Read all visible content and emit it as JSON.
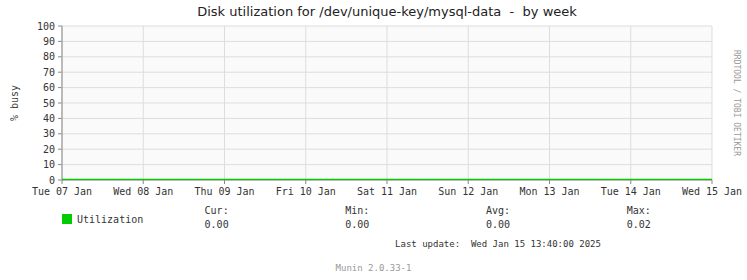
{
  "chart_data": {
    "type": "line",
    "title": "Disk utilization for /dev/unique-key/mysql-data  -  by week",
    "y_label": "% busy",
    "x": [
      0,
      8
    ],
    "xlim": [
      0,
      8
    ],
    "xticks": [
      {
        "value": 0,
        "label": "Tue 07 Jan"
      },
      {
        "value": 1,
        "label": "Wed 08 Jan"
      },
      {
        "value": 2,
        "label": "Thu 09 Jan"
      },
      {
        "value": 3,
        "label": "Fri 10 Jan"
      },
      {
        "value": 4,
        "label": "Sat 11 Jan"
      },
      {
        "value": 5,
        "label": "Sun 12 Jan"
      },
      {
        "value": 6,
        "label": "Mon 13 Jan"
      },
      {
        "value": 7,
        "label": "Tue 14 Jan"
      },
      {
        "value": 8,
        "label": "Wed 15 Jan"
      }
    ],
    "ylim": [
      0,
      100
    ],
    "yticks": [
      0,
      10,
      20,
      30,
      40,
      50,
      60,
      70,
      80,
      90,
      100
    ],
    "grid": true,
    "series": [
      {
        "name": "Utilization",
        "color": "#00cc00",
        "values": [
          0,
          0
        ]
      }
    ],
    "stats": [
      {
        "name": "Cur:",
        "value": 0,
        "label": "0.00"
      },
      {
        "name": "Min:",
        "value": 0,
        "label": "0.00"
      },
      {
        "name": "Avg:",
        "value": 0,
        "label": "0.00"
      },
      {
        "name": "Max:",
        "value": 0.02,
        "label": "0.02"
      }
    ],
    "annotations": [
      "Last update:  Wed Jan 15 13:40:00 2025",
      "Munin 2.0.33-1",
      "RRDTOOL / TOBI OETIKER"
    ]
  }
}
